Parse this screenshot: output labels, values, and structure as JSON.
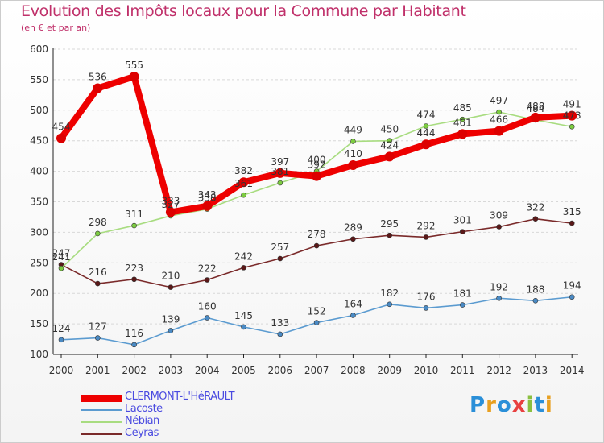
{
  "title": "Evolution des Impôts locaux pour la Commune par Habitant",
  "subtitle": "(en € et par an)",
  "logo_text": "Proxiti",
  "logo_colors": [
    "#2a8fd8",
    "#e8a020",
    "#2a8fd8",
    "#e84040",
    "#8ac040",
    "#2a8fd8",
    "#e8a020"
  ],
  "chart_data": {
    "type": "line",
    "title": "Evolution des Impôts locaux pour la Commune par Habitant",
    "subtitle": "(en € et par an)",
    "xlabel": "",
    "ylabel": "",
    "x": [
      "2000",
      "2001",
      "2002",
      "2003",
      "2004",
      "2005",
      "2006",
      "2007",
      "2008",
      "2009",
      "2010",
      "2011",
      "2012",
      "2013",
      "2014"
    ],
    "ylim": [
      100,
      600
    ],
    "yticks": [
      "100",
      "150",
      "200",
      "250",
      "300",
      "350",
      "400",
      "450",
      "500",
      "550",
      "600"
    ],
    "grid": "horizontal",
    "legend_position": "bottom-left",
    "series": [
      {
        "name": "Ceyras",
        "color": "#7a2a2a",
        "marker": "#5a1818",
        "bold": false,
        "values": [
          247,
          216,
          223,
          210,
          222,
          242,
          257,
          278,
          289,
          295,
          292,
          301,
          309,
          322,
          315
        ],
        "labels": [
          "247",
          "216",
          "223",
          "210",
          "222",
          "242",
          "257",
          "278",
          "289",
          "295",
          "292",
          "301",
          "309",
          "322",
          "315"
        ]
      },
      {
        "name": "Lacoste",
        "color": "#5b9bd0",
        "marker": "#4a8ac4",
        "bold": false,
        "values": [
          124,
          127,
          116,
          139,
          160,
          145,
          133,
          152,
          164,
          182,
          176,
          181,
          192,
          188,
          194
        ],
        "labels": [
          "124",
          "127",
          "116",
          "139",
          "160",
          "145",
          "133",
          "152",
          "164",
          "182",
          "176",
          "181",
          "192",
          "188",
          "194"
        ]
      },
      {
        "name": "Nébian",
        "color": "#a8dc80",
        "marker": "#7ccc40",
        "bold": false,
        "values": [
          241,
          298,
          311,
          327,
          338,
          361,
          381,
          400,
          449,
          450,
          474,
          485,
          497,
          484,
          473
        ],
        "labels": [
          "241",
          "298",
          "311",
          "327",
          "338",
          "361",
          "381",
          "400",
          "449",
          "450",
          "474",
          "485",
          "497",
          "484",
          "473"
        ]
      },
      {
        "name": "CLERMONT-L'HéRAULT",
        "color": "#ee0000",
        "marker": "#dd0000",
        "bold": true,
        "values": [
          454,
          536,
          555,
          333,
          343,
          382,
          397,
          392,
          410,
          424,
          444,
          461,
          466,
          488,
          491
        ],
        "labels": [
          "454",
          "536",
          "555",
          "333",
          "343",
          "382",
          "397",
          "392",
          "410",
          "424",
          "444",
          "461",
          "466",
          "488",
          "491"
        ]
      }
    ],
    "legend": [
      {
        "name": "CLERMONT-L'HéRAULT",
        "color": "#ee0000",
        "text_color": "#4a4ae0",
        "bold": true
      },
      {
        "name": "Lacoste",
        "color": "#5b9bd0",
        "text_color": "#4a4ae0",
        "bold": false
      },
      {
        "name": "Nébian",
        "color": "#a8dc80",
        "text_color": "#4a4ae0",
        "bold": false
      },
      {
        "name": "Ceyras",
        "color": "#7a2a2a",
        "text_color": "#4a4ae0",
        "bold": false
      }
    ]
  }
}
